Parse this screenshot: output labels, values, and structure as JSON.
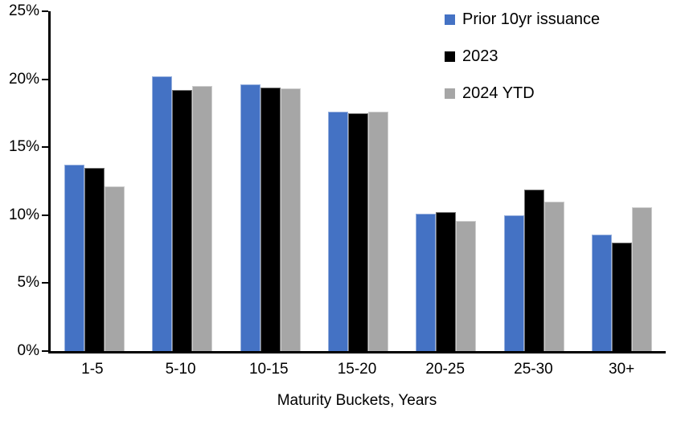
{
  "chart_data": {
    "type": "bar",
    "title": "",
    "categories": [
      "1-5",
      "5-10",
      "10-15",
      "15-20",
      "20-25",
      "25-30",
      "30+"
    ],
    "series": [
      {
        "name": "Prior 10yr issuance",
        "color": "#4472C4",
        "values": [
          13.7,
          20.2,
          19.6,
          17.6,
          10.1,
          10.0,
          8.6
        ]
      },
      {
        "name": "2023",
        "color": "#000000",
        "values": [
          13.5,
          19.2,
          19.4,
          17.5,
          10.2,
          11.9,
          8.0
        ]
      },
      {
        "name": "2024 YTD",
        "color": "#A6A6A6",
        "values": [
          12.1,
          19.5,
          19.3,
          17.6,
          9.6,
          11.0,
          10.6
        ]
      }
    ],
    "xlabel": "Maturity Buckets, Years",
    "ylabel": "",
    "ylim": [
      0,
      25
    ],
    "yticks": [
      {
        "value": 0,
        "label": "0%"
      },
      {
        "value": 5,
        "label": "5%"
      },
      {
        "value": 10,
        "label": "10%"
      },
      {
        "value": 15,
        "label": "15%"
      },
      {
        "value": 20,
        "label": "20%"
      },
      {
        "value": 25,
        "label": "25%"
      }
    ],
    "grid": false,
    "legend_position": "top-right",
    "axis_color": "#000000",
    "background_color": "#FFFFFF"
  }
}
